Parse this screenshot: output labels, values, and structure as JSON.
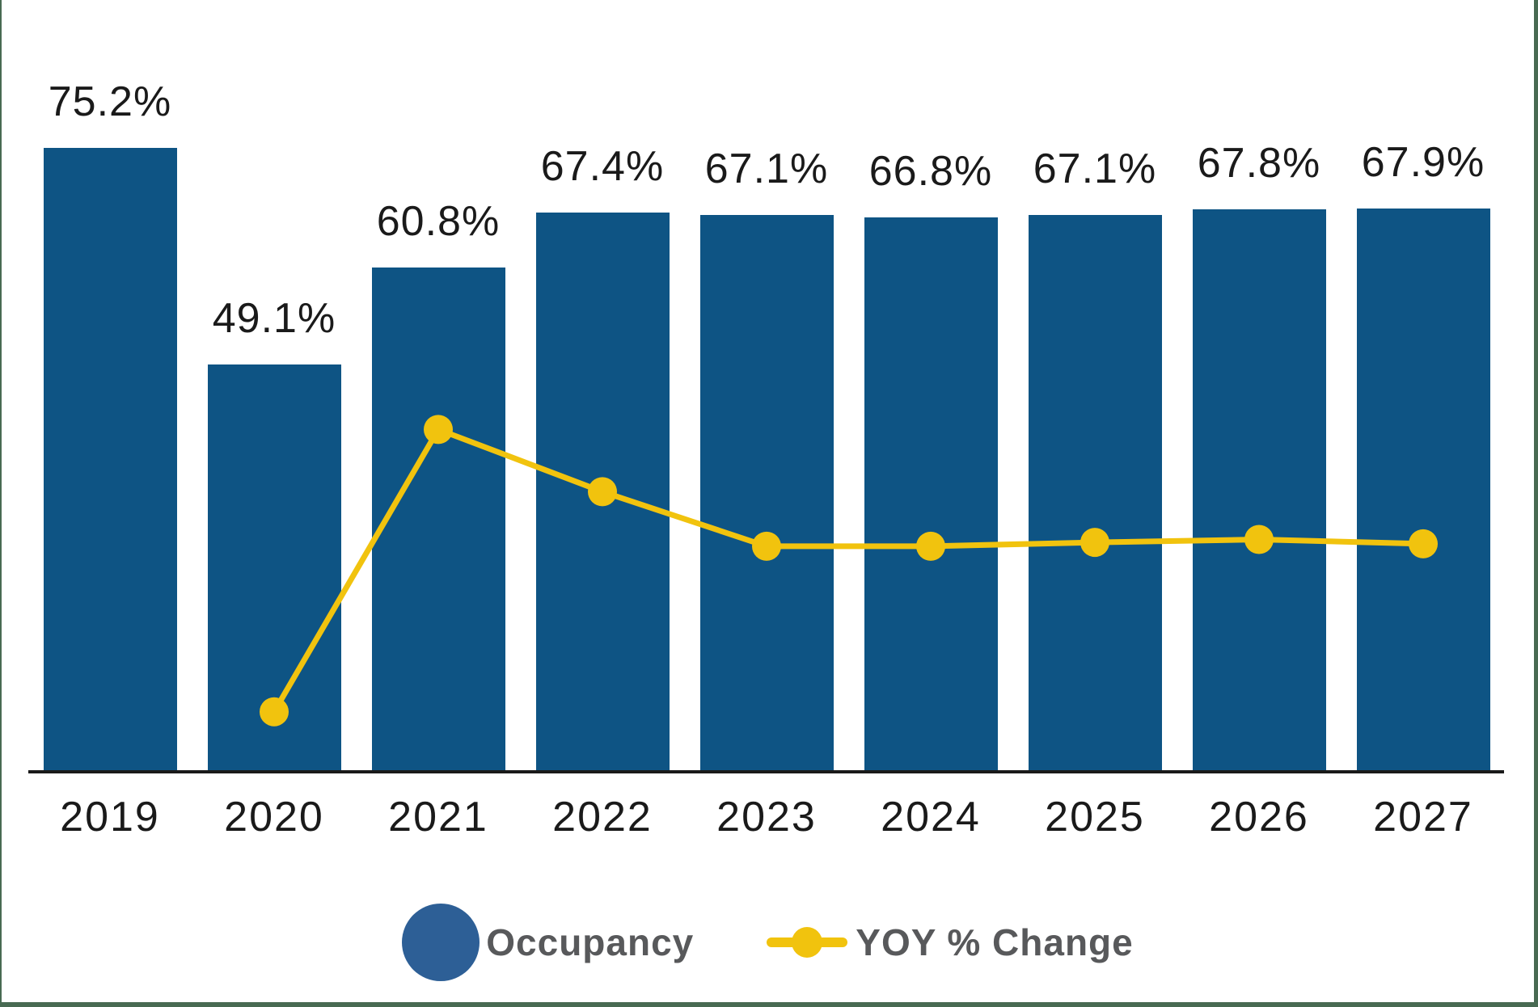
{
  "chart_data": {
    "type": "bar",
    "title": "",
    "xlabel": "",
    "ylabel": "",
    "grid": false,
    "y_axis_visible": false,
    "legend_position": "bottom",
    "categories": [
      "2019",
      "2020",
      "2021",
      "2022",
      "2023",
      "2024",
      "2025",
      "2026",
      "2027"
    ],
    "series": [
      {
        "name": "Occupancy",
        "type": "bar",
        "values": [
          75.2,
          49.1,
          60.8,
          67.4,
          67.1,
          66.8,
          67.1,
          67.8,
          67.9
        ],
        "data_labels": [
          "75.2%",
          "49.1%",
          "60.8%",
          "67.4%",
          "67.1%",
          "66.8%",
          "67.1%",
          "67.8%",
          "67.9%"
        ],
        "color": "#0e5484",
        "ylim": [
          0,
          93
        ]
      },
      {
        "name": "YOY % Change",
        "type": "line",
        "categories": [
          "2020",
          "2021",
          "2022",
          "2023",
          "2024",
          "2025",
          "2026",
          "2027"
        ],
        "values": [
          -34.7,
          23.8,
          10.9,
          -0.4,
          -0.4,
          0.4,
          1.0,
          0.1
        ],
        "color": "#f1c30e"
      }
    ]
  },
  "legend": {
    "items": [
      {
        "label": "Occupancy",
        "marker": "circle",
        "color": "#2d5f96"
      },
      {
        "label": "YOY % Change",
        "marker": "line-dot",
        "color": "#f1c30e"
      }
    ]
  },
  "colors": {
    "background": "#ffffff",
    "frame_edge": "#486a52",
    "axis_line": "#1a1a1a",
    "data_label_text": "#1a1a1a",
    "year_label_text": "#1a1a1a",
    "legend_text": "#58595b"
  }
}
